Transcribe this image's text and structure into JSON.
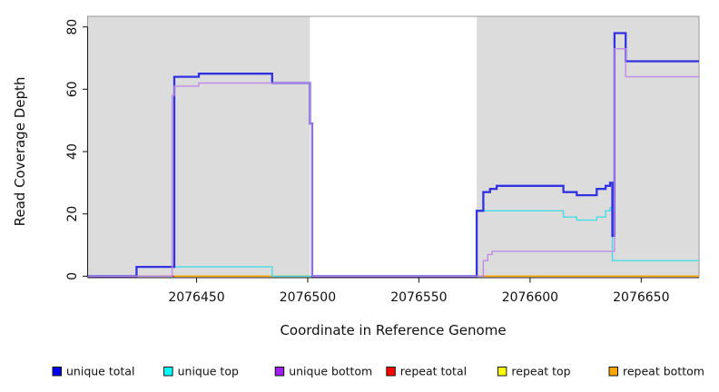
{
  "chart_data": {
    "type": "line",
    "subtype": "step-coverage-plot",
    "title": "",
    "xlabel": "Coordinate in Reference Genome",
    "ylabel": "Read Coverage Depth",
    "x_domain": [
      2076401,
      2076676
    ],
    "y_domain": [
      0,
      83.5
    ],
    "x_ticks": [
      2076450,
      2076500,
      2076550,
      2076600,
      2076650
    ],
    "y_ticks": [
      0,
      20,
      40,
      60,
      80
    ],
    "grid": false,
    "shaded_regions": [
      {
        "x0": 2076401,
        "x1": 2076501,
        "color": "#dcdcdc"
      },
      {
        "x0": 2076576,
        "x1": 2076676,
        "color": "#dcdcdc"
      }
    ],
    "frame_color": "#999999",
    "axis_color": "#222222",
    "series": [
      {
        "name": "repeat total",
        "color": "#dd1111",
        "width": 1.2,
        "segments": [
          {
            "points": [
              [
                2076423,
                0
              ]
            ],
            "end": 2076501
          },
          {
            "points": [
              [
                2076575,
                0
              ]
            ],
            "end": 2076676
          }
        ]
      },
      {
        "name": "repeat top",
        "color": "#ffff00",
        "width": 1.2,
        "segments": [
          {
            "points": [
              [
                2076440,
                0
              ]
            ],
            "end": 2076501
          },
          {
            "points": [
              [
                2076576,
                0
              ]
            ],
            "end": 2076676
          }
        ]
      },
      {
        "name": "repeat bottom",
        "color": "#ffa500",
        "width": 1.5,
        "segments": [
          {
            "points": [
              [
                2076440,
                0
              ]
            ],
            "end": 2076501
          },
          {
            "points": [
              [
                2076576,
                0
              ]
            ],
            "end": 2076676
          }
        ]
      },
      {
        "name": "unique top",
        "color": "#45dce6",
        "width": 1.4,
        "segments": [
          {
            "points": [
              [
                2076401,
                0
              ],
              [
                2076423,
                3
              ],
              [
                2076484,
                0
              ],
              [
                2076576,
                21
              ],
              [
                2076615,
                19
              ],
              [
                2076621,
                18
              ],
              [
                2076630,
                19
              ],
              [
                2076634,
                21
              ],
              [
                2076636,
                22
              ],
              [
                2076637,
                5
              ]
            ],
            "end": 2076676
          }
        ]
      },
      {
        "name": "unique total",
        "color": "#3232e0",
        "width": 2.3,
        "segments": [
          {
            "points": [
              [
                2076401,
                0
              ],
              [
                2076423,
                3
              ],
              [
                2076440,
                64
              ],
              [
                2076451,
                65
              ],
              [
                2076484,
                62
              ],
              [
                2076501,
                49
              ],
              [
                2076502,
                0
              ],
              [
                2076576,
                21
              ],
              [
                2076579,
                27
              ],
              [
                2076582,
                28
              ],
              [
                2076585,
                29
              ],
              [
                2076615,
                27
              ],
              [
                2076621,
                26
              ],
              [
                2076630,
                28
              ],
              [
                2076634,
                29
              ],
              [
                2076636,
                30
              ],
              [
                2076637,
                13
              ],
              [
                2076638,
                78
              ],
              [
                2076643,
                69
              ]
            ],
            "end": 2076676
          }
        ]
      },
      {
        "name": "unique bottom",
        "color": "#bd8ce6",
        "width": 1.4,
        "segments": [
          {
            "points": [
              [
                2076401,
                0
              ],
              [
                2076439,
                58
              ],
              [
                2076440,
                61
              ],
              [
                2076451,
                62
              ],
              [
                2076501,
                49
              ],
              [
                2076502,
                0
              ],
              [
                2076579,
                5
              ],
              [
                2076581,
                7
              ],
              [
                2076583,
                8
              ],
              [
                2076638,
                73
              ],
              [
                2076643,
                64
              ]
            ],
            "end": 2076676
          }
        ]
      }
    ],
    "legend": {
      "position": "bottom",
      "items": [
        {
          "label": "unique total",
          "color": "#0000ee"
        },
        {
          "label": "unique top",
          "color": "#00ffff"
        },
        {
          "label": "unique bottom",
          "color": "#a020f0"
        },
        {
          "label": "repeat total",
          "color": "#ff0000"
        },
        {
          "label": "repeat top",
          "color": "#ffff00"
        },
        {
          "label": "repeat bottom",
          "color": "#ffa500"
        }
      ]
    }
  }
}
